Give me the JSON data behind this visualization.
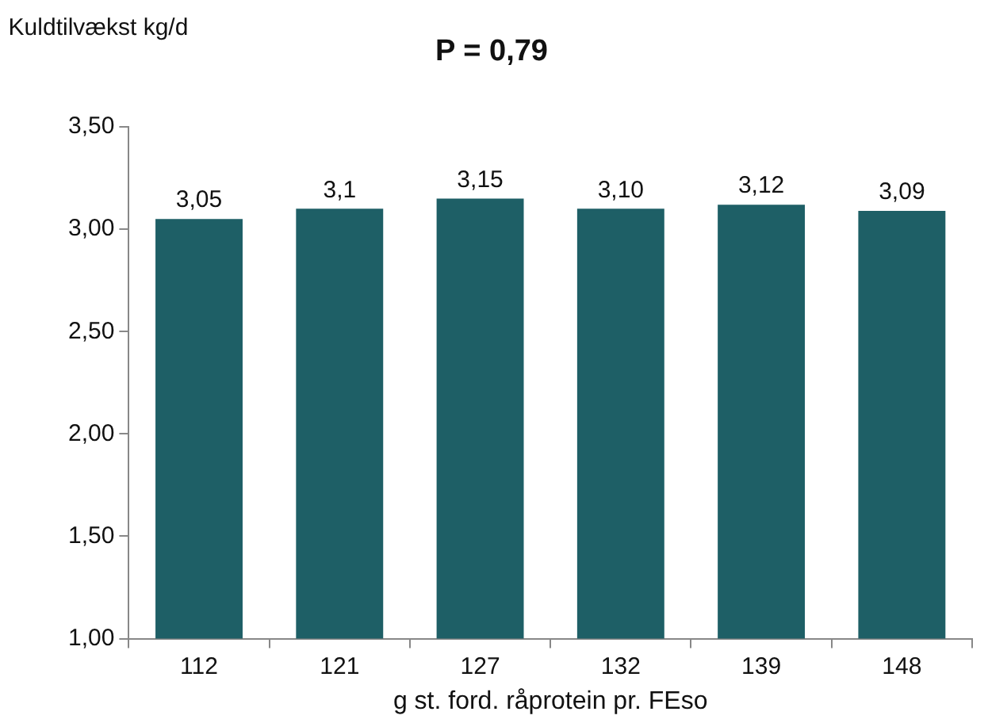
{
  "chart_data": {
    "type": "bar",
    "title": "P = 0,79",
    "ylabel": "Kuldtilvækst kg/d",
    "xlabel": "g st. ford. råprotein pr. FEso",
    "categories": [
      "112",
      "121",
      "127",
      "132",
      "139",
      "148"
    ],
    "values": [
      3.05,
      3.1,
      3.15,
      3.1,
      3.12,
      3.09
    ],
    "value_labels": [
      "3,05",
      "3,1",
      "3,15",
      "3,10",
      "3,12",
      "3,09"
    ],
    "color": "#1e5f66",
    "ylim": [
      1,
      3.5
    ],
    "yticks": [
      {
        "value": 1,
        "label": "1,00"
      },
      {
        "value": 1.5,
        "label": "1,50"
      },
      {
        "value": 2,
        "label": "2,00"
      },
      {
        "value": 2.5,
        "label": "2,50"
      },
      {
        "value": 3,
        "label": "3,00"
      },
      {
        "value": 3.5,
        "label": "3,50"
      }
    ],
    "grid": false,
    "legend": false
  }
}
